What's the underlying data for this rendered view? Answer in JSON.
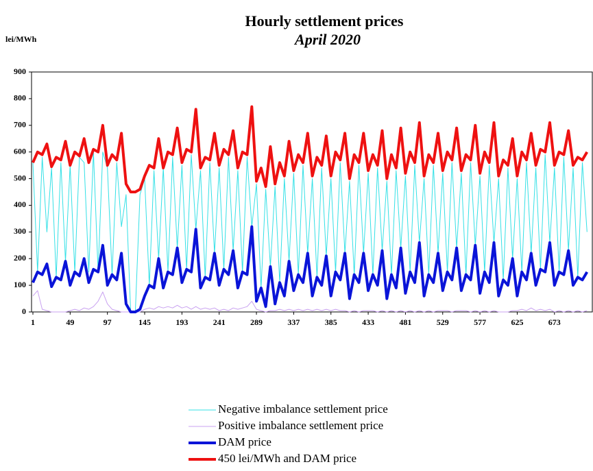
{
  "chart_data": {
    "type": "line",
    "title": "Hourly settlement prices",
    "subtitle": "April 2020",
    "y_label": "lei/MWh",
    "x": [
      1,
      7,
      13,
      19,
      25,
      31,
      37,
      43,
      49,
      55,
      61,
      67,
      73,
      79,
      85,
      91,
      97,
      103,
      109,
      115,
      121,
      127,
      133,
      139,
      145,
      151,
      157,
      163,
      169,
      175,
      181,
      187,
      193,
      199,
      205,
      211,
      217,
      223,
      229,
      235,
      241,
      247,
      253,
      259,
      265,
      271,
      277,
      283,
      289,
      295,
      301,
      307,
      313,
      319,
      325,
      331,
      337,
      343,
      349,
      355,
      361,
      367,
      373,
      379,
      385,
      391,
      397,
      403,
      409,
      415,
      421,
      427,
      433,
      439,
      445,
      451,
      457,
      463,
      469,
      475,
      481,
      487,
      493,
      499,
      505,
      511,
      517,
      523,
      529,
      535,
      541,
      547,
      553,
      559,
      565,
      571,
      577,
      583,
      589,
      595,
      601,
      607,
      613,
      619,
      625,
      631,
      637,
      643,
      649,
      655,
      661,
      667,
      673,
      679,
      685,
      691,
      697,
      703,
      709,
      715
    ],
    "xlim": [
      1,
      720
    ],
    "xticks": [
      1,
      49,
      97,
      145,
      193,
      241,
      289,
      337,
      385,
      433,
      481,
      529,
      577,
      625,
      673
    ],
    "ylim": [
      0,
      900
    ],
    "yticks": [
      0,
      100,
      200,
      300,
      400,
      500,
      600,
      700,
      800,
      900
    ],
    "series": [
      {
        "name": "Negative imbalance settlement price",
        "color": "#33e0e6",
        "line_width": 1,
        "values": [
          560,
          150,
          580,
          300,
          540,
          130,
          560,
          190,
          550,
          150,
          580,
          560,
          150,
          600,
          150,
          600,
          540,
          140,
          560,
          320,
          440,
          0,
          0,
          440,
          500,
          100,
          530,
          200,
          540,
          150,
          580,
          240,
          550,
          160,
          590,
          310,
          530,
          130,
          560,
          220,
          540,
          160,
          580,
          230,
          530,
          150,
          580,
          320,
          480,
          90,
          460,
          170,
          470,
          110,
          500,
          190,
          520,
          140,
          550,
          220,
          500,
          130,
          540,
          210,
          500,
          150,
          560,
          220,
          490,
          140,
          550,
          220,
          520,
          140,
          540,
          230,
          490,
          140,
          530,
          240,
          510,
          150,
          550,
          260,
          500,
          140,
          550,
          220,
          520,
          150,
          560,
          240,
          520,
          140,
          560,
          250,
          510,
          150,
          550,
          260,
          500,
          120,
          540,
          200,
          500,
          150,
          560,
          220,
          540,
          160,
          590,
          260,
          540,
          150,
          580,
          230,
          540,
          130,
          560,
          300
        ]
      },
      {
        "name": "Positive imbalance settlement price",
        "color": "#c8a0f0",
        "line_width": 1,
        "values": [
          60,
          80,
          10,
          5,
          0,
          0,
          0,
          0,
          5,
          10,
          5,
          15,
          10,
          20,
          40,
          75,
          30,
          10,
          5,
          0,
          0,
          0,
          0,
          0,
          10,
          15,
          10,
          20,
          15,
          20,
          15,
          25,
          15,
          20,
          10,
          20,
          10,
          15,
          10,
          15,
          5,
          10,
          5,
          15,
          10,
          15,
          20,
          40,
          10,
          5,
          0,
          5,
          5,
          10,
          5,
          10,
          5,
          10,
          5,
          10,
          5,
          10,
          5,
          10,
          5,
          10,
          5,
          5,
          0,
          5,
          0,
          5,
          5,
          5,
          0,
          5,
          0,
          5,
          0,
          5,
          0,
          5,
          0,
          5,
          0,
          5,
          0,
          5,
          5,
          5,
          0,
          5,
          5,
          5,
          0,
          5,
          0,
          5,
          0,
          5,
          0,
          0,
          0,
          5,
          5,
          10,
          5,
          15,
          5,
          10,
          5,
          10,
          0,
          5,
          0,
          5,
          0,
          5,
          0,
          5
        ]
      },
      {
        "name": "DAM price",
        "color": "#0a14d8",
        "line_width": 4,
        "values": [
          110,
          150,
          140,
          180,
          95,
          130,
          120,
          190,
          100,
          150,
          135,
          200,
          110,
          160,
          150,
          250,
          100,
          140,
          120,
          220,
          30,
          0,
          0,
          10,
          60,
          100,
          90,
          200,
          90,
          150,
          140,
          240,
          110,
          160,
          150,
          310,
          90,
          130,
          120,
          220,
          100,
          160,
          140,
          230,
          90,
          150,
          140,
          320,
          40,
          90,
          20,
          170,
          30,
          110,
          60,
          190,
          80,
          140,
          110,
          220,
          60,
          130,
          100,
          210,
          60,
          150,
          120,
          220,
          50,
          140,
          110,
          220,
          80,
          140,
          100,
          230,
          50,
          140,
          90,
          240,
          70,
          150,
          110,
          260,
          60,
          140,
          110,
          220,
          80,
          150,
          120,
          240,
          80,
          140,
          120,
          250,
          70,
          150,
          110,
          260,
          60,
          120,
          100,
          200,
          60,
          150,
          120,
          220,
          100,
          160,
          150,
          260,
          100,
          150,
          140,
          230,
          100,
          130,
          120,
          150
        ]
      },
      {
        "name": "450 lei/MWh and DAM price",
        "color": "#ee1111",
        "line_width": 4,
        "values": [
          560,
          600,
          590,
          630,
          545,
          580,
          570,
          640,
          550,
          600,
          585,
          650,
          560,
          610,
          600,
          700,
          550,
          590,
          570,
          670,
          480,
          450,
          450,
          460,
          510,
          550,
          540,
          650,
          540,
          600,
          590,
          690,
          560,
          610,
          600,
          760,
          540,
          580,
          570,
          670,
          550,
          610,
          590,
          680,
          540,
          600,
          590,
          770,
          490,
          540,
          470,
          620,
          480,
          560,
          510,
          640,
          530,
          590,
          560,
          670,
          510,
          580,
          550,
          660,
          510,
          600,
          570,
          670,
          500,
          590,
          560,
          670,
          530,
          590,
          550,
          680,
          500,
          590,
          540,
          690,
          520,
          600,
          560,
          710,
          510,
          590,
          560,
          670,
          530,
          600,
          570,
          690,
          530,
          590,
          570,
          700,
          520,
          600,
          560,
          710,
          510,
          570,
          550,
          650,
          510,
          600,
          570,
          670,
          550,
          610,
          600,
          710,
          550,
          600,
          590,
          680,
          550,
          580,
          570,
          600
        ]
      }
    ]
  }
}
